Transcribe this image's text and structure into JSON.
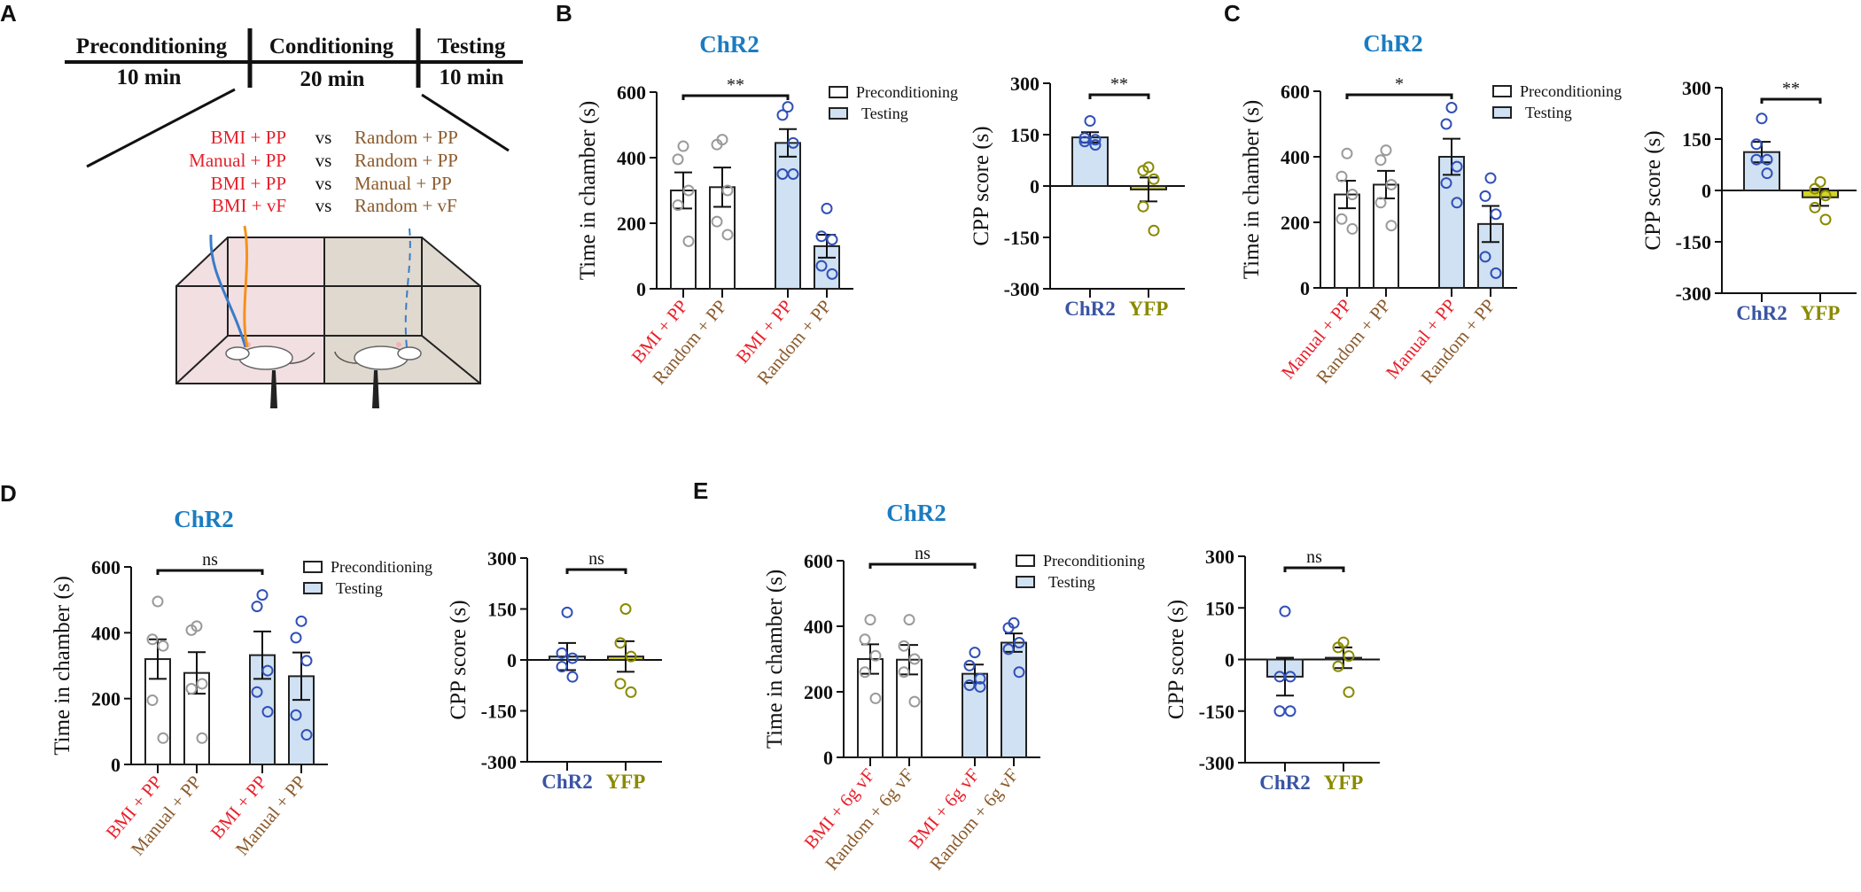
{
  "panel_labels": {
    "a": "A",
    "b": "B",
    "c": "C",
    "d": "D",
    "e": "E"
  },
  "protocol": {
    "phases": [
      {
        "name": "Preconditioning",
        "duration": "10 min"
      },
      {
        "name": "Conditioning",
        "duration": "20 min"
      },
      {
        "name": "Testing",
        "duration": "10 min"
      }
    ],
    "comparisons": [
      {
        "left": "BMI + PP",
        "vs": "vs",
        "right": "Random + PP"
      },
      {
        "left": "Manual + PP",
        "vs": "vs",
        "right": "Random + PP"
      },
      {
        "left": "BMI + PP",
        "vs": "vs",
        "right": "Manual + PP"
      },
      {
        "left": "BMI + vF",
        "vs": "vs",
        "right": "Random + vF"
      }
    ]
  },
  "colors": {
    "title": "#1a7cc1",
    "condition_red": "#e8202a",
    "control_brown": "#8b5a2b",
    "chr2_blue": "#3a54a4",
    "yfp_olive": "#8a8a00",
    "testing_fill": "#cfe1f3",
    "yfp_fill": "#d4d42a",
    "pre_points": "#9a9a9a",
    "test_points": "#3050b8",
    "chamber_pink": "#f2dfe2",
    "chamber_beige": "#e0d9cf"
  },
  "chart_data": [
    {
      "panel": "B",
      "type": "bar",
      "title": "ChR2",
      "ylabel": "Time in chamber (s)",
      "ylim": [
        0,
        600
      ],
      "yticks": [
        "0",
        "200",
        "400",
        "600"
      ],
      "legend": {
        "entries": [
          "Preconditioning",
          "Testing"
        ],
        "position": "top-right"
      },
      "categories": [
        "BMI + PP",
        "Random + PP",
        "BMI + PP",
        "Random + PP"
      ],
      "category_colors": [
        "red",
        "brown",
        "red",
        "brown"
      ],
      "groups": [
        "Preconditioning",
        "Preconditioning",
        "Testing",
        "Testing"
      ],
      "values": [
        300,
        310,
        445,
        130
      ],
      "sem": [
        55,
        60,
        42,
        35
      ],
      "points": [
        [
          435,
          395,
          300,
          255,
          145
        ],
        [
          455,
          440,
          300,
          205,
          165
        ],
        [
          555,
          530,
          445,
          350,
          350
        ],
        [
          245,
          160,
          150,
          70,
          45
        ]
      ],
      "significance": {
        "between": [
          0,
          2
        ],
        "label": "**"
      }
    },
    {
      "panel": "B",
      "type": "bar",
      "ylabel": "CPP score (s)",
      "ylim": [
        -300,
        300
      ],
      "yticks": [
        "-300",
        "-150",
        "0",
        "150",
        "300"
      ],
      "categories": [
        "ChR2",
        "YFP"
      ],
      "values": [
        142,
        -10
      ],
      "sem": [
        15,
        35
      ],
      "points": [
        [
          190,
          140,
          135,
          130,
          120
        ],
        [
          55,
          45,
          20,
          -60,
          -130
        ]
      ],
      "significance": {
        "between": [
          0,
          1
        ],
        "label": "**"
      }
    },
    {
      "panel": "C",
      "type": "bar",
      "title": "ChR2",
      "ylabel": "Time in chamber (s)",
      "ylim": [
        0,
        600
      ],
      "yticks": [
        "0",
        "200",
        "400",
        "600"
      ],
      "legend": {
        "entries": [
          "Preconditioning",
          "Testing"
        ],
        "position": "top-right"
      },
      "categories": [
        "Manual + PP",
        "Random + PP",
        "Manual + PP",
        "Random + PP"
      ],
      "category_colors": [
        "red",
        "brown",
        "red",
        "brown"
      ],
      "groups": [
        "Preconditioning",
        "Preconditioning",
        "Testing",
        "Testing"
      ],
      "values": [
        285,
        315,
        400,
        195
      ],
      "sem": [
        42,
        42,
        55,
        55
      ],
      "points": [
        [
          410,
          340,
          285,
          210,
          180
        ],
        [
          420,
          390,
          315,
          260,
          190
        ],
        [
          550,
          500,
          370,
          320,
          260
        ],
        [
          335,
          280,
          225,
          95,
          45
        ]
      ],
      "significance": {
        "between": [
          0,
          2
        ],
        "label": "*"
      }
    },
    {
      "panel": "C",
      "type": "bar",
      "ylabel": "CPP score (s)",
      "ylim": [
        -300,
        300
      ],
      "yticks": [
        "-300",
        "-150",
        "0",
        "150",
        "300"
      ],
      "categories": [
        "ChR2",
        "YFP"
      ],
      "values": [
        112,
        -20
      ],
      "sem": [
        30,
        25
      ],
      "points": [
        [
          210,
          135,
          90,
          90,
          50
        ],
        [
          25,
          5,
          -15,
          -50,
          -85
        ]
      ],
      "significance": {
        "between": [
          0,
          1
        ],
        "label": "**"
      }
    },
    {
      "panel": "D",
      "type": "bar",
      "title": "ChR2",
      "ylabel": "Time in chamber (s)",
      "ylim": [
        0,
        600
      ],
      "yticks": [
        "0",
        "200",
        "400",
        "600"
      ],
      "legend": {
        "entries": [
          "Preconditioning",
          "Testing"
        ],
        "position": "top-right"
      },
      "categories": [
        "BMI + PP",
        "Manual + PP",
        "BMI + PP",
        "Manual + PP"
      ],
      "category_colors": [
        "red",
        "brown",
        "red",
        "brown"
      ],
      "groups": [
        "Preconditioning",
        "Preconditioning",
        "Testing",
        "Testing"
      ],
      "values": [
        320,
        278,
        332,
        268
      ],
      "sem": [
        60,
        63,
        72,
        72
      ],
      "points": [
        [
          495,
          380,
          360,
          195,
          80
        ],
        [
          420,
          408,
          245,
          230,
          80
        ],
        [
          515,
          480,
          285,
          220,
          160
        ],
        [
          435,
          385,
          315,
          150,
          90
        ]
      ],
      "significance": {
        "between": [
          0,
          2
        ],
        "label": "ns"
      }
    },
    {
      "panel": "D",
      "type": "bar",
      "ylabel": "CPP score (s)",
      "ylim": [
        -300,
        300
      ],
      "yticks": [
        "-300",
        "-150",
        "0",
        "150",
        "300"
      ],
      "categories": [
        "ChR2",
        "YFP"
      ],
      "values": [
        10,
        10
      ],
      "sem": [
        40,
        45
      ],
      "points": [
        [
          140,
          20,
          5,
          -20,
          -50
        ],
        [
          150,
          50,
          10,
          -70,
          -95
        ]
      ],
      "significance": {
        "between": [
          0,
          1
        ],
        "label": "ns"
      }
    },
    {
      "panel": "E",
      "type": "bar",
      "title": "ChR2",
      "ylabel": "Time in chamber (s)",
      "ylim": [
        0,
        600
      ],
      "yticks": [
        "0",
        "200",
        "400",
        "600"
      ],
      "legend": {
        "entries": [
          "Preconditioning",
          "Testing"
        ],
        "position": "top-right"
      },
      "categories": [
        "BMI + 6g vF",
        "Random + 6g vF",
        "BMI + 6g vF",
        "Random + 6g vF"
      ],
      "category_colors": [
        "red",
        "brown",
        "red",
        "brown"
      ],
      "groups": [
        "Preconditioning",
        "Preconditioning",
        "Testing",
        "Testing"
      ],
      "values": [
        300,
        298,
        255,
        350
      ],
      "sem": [
        45,
        45,
        28,
        28
      ],
      "points": [
        [
          420,
          360,
          310,
          260,
          180
        ],
        [
          420,
          340,
          300,
          260,
          170
        ],
        [
          320,
          280,
          240,
          220,
          215
        ],
        [
          410,
          395,
          350,
          330,
          260
        ]
      ],
      "significance": {
        "between": [
          0,
          2
        ],
        "label": "ns"
      }
    },
    {
      "panel": "E",
      "type": "bar",
      "ylabel": "CPP score (s)",
      "ylim": [
        -300,
        300
      ],
      "yticks": [
        "-300",
        "-150",
        "0",
        "150",
        "300"
      ],
      "categories": [
        "ChR2",
        "YFP"
      ],
      "values": [
        -50,
        5
      ],
      "sem": [
        55,
        30
      ],
      "points": [
        [
          140,
          -50,
          -50,
          -150,
          -150
        ],
        [
          50,
          35,
          10,
          -20,
          -95
        ]
      ],
      "significance": {
        "between": [
          0,
          1
        ],
        "label": "ns"
      }
    }
  ]
}
